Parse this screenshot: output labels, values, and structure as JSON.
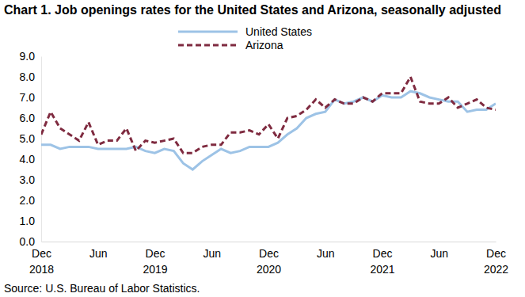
{
  "chart_data": {
    "type": "line",
    "title": "Chart 1. Job openings rates for the United States and Arizona, seasonally adjusted",
    "source": "Source: U.S. Bureau of Labor Statistics.",
    "categories": [
      "Dec 2018",
      null,
      null,
      null,
      null,
      null,
      "Jun",
      null,
      null,
      null,
      null,
      null,
      "Dec 2019",
      null,
      null,
      null,
      null,
      null,
      "Jun",
      null,
      null,
      null,
      null,
      null,
      "Dec 2020",
      null,
      null,
      null,
      null,
      null,
      "Jun",
      null,
      null,
      null,
      null,
      null,
      "Dec 2021",
      null,
      null,
      null,
      null,
      null,
      "Jun",
      null,
      null,
      null,
      null,
      null,
      "Dec 2022"
    ],
    "series": [
      {
        "name": "United States",
        "color": "#9dc3e6",
        "line_style": "solid",
        "values": [
          4.7,
          4.7,
          4.5,
          4.6,
          4.6,
          4.6,
          4.5,
          4.5,
          4.5,
          4.5,
          4.6,
          4.4,
          4.3,
          4.5,
          4.4,
          3.8,
          3.5,
          3.9,
          4.2,
          4.5,
          4.3,
          4.4,
          4.6,
          4.6,
          4.6,
          4.8,
          5.2,
          5.5,
          6.0,
          6.2,
          6.3,
          6.9,
          6.7,
          6.8,
          7.0,
          6.8,
          7.1,
          7.0,
          7.0,
          7.3,
          7.2,
          7.0,
          6.9,
          6.8,
          6.8,
          6.3,
          6.4,
          6.4,
          6.7
        ]
      },
      {
        "name": "Arizona",
        "color": "#7f2b40",
        "line_style": "dashed",
        "values": [
          5.2,
          6.3,
          5.5,
          5.2,
          4.9,
          5.8,
          4.7,
          4.9,
          4.9,
          5.5,
          4.4,
          4.9,
          4.8,
          4.9,
          5.0,
          4.3,
          4.3,
          4.6,
          4.7,
          4.7,
          5.3,
          5.3,
          5.4,
          5.2,
          5.7,
          5.0,
          6.0,
          6.1,
          6.4,
          6.9,
          6.5,
          6.9,
          6.7,
          6.7,
          7.0,
          6.8,
          7.2,
          7.2,
          7.2,
          8.0,
          6.8,
          6.7,
          6.7,
          7.0,
          6.5,
          6.7,
          6.9,
          6.5,
          6.4
        ]
      }
    ],
    "ylim": [
      0,
      9
    ],
    "yticks": [
      {
        "value": 0,
        "label": "0.0"
      },
      {
        "value": 1,
        "label": "1.0"
      },
      {
        "value": 2,
        "label": "2.0"
      },
      {
        "value": 3,
        "label": "3.0"
      },
      {
        "value": 4,
        "label": "4.0"
      },
      {
        "value": 5,
        "label": "5.0"
      },
      {
        "value": 6,
        "label": "6.0"
      },
      {
        "value": 7,
        "label": "7.0"
      },
      {
        "value": 8,
        "label": "8.0"
      },
      {
        "value": 9,
        "label": "9.0"
      }
    ],
    "grid": false,
    "legend": "top"
  }
}
